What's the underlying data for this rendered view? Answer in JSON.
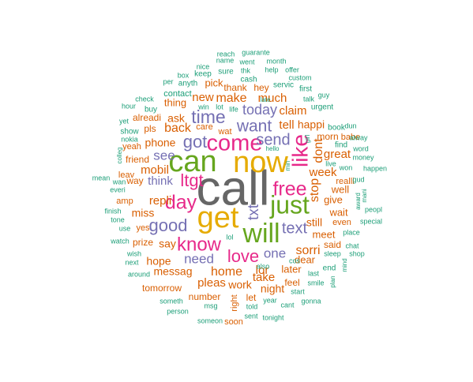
{
  "palette": {
    "teal": "#1b9e77",
    "orange": "#d95f02",
    "purple": "#7570b3",
    "magenta": "#e7298a",
    "green": "#66a61e",
    "gold": "#e6ab02",
    "gray": "#666666"
  },
  "words": [
    {
      "id": "call",
      "text": "call",
      "color": "gray"
    },
    {
      "id": "get",
      "text": "get",
      "color": "gold"
    },
    {
      "id": "can",
      "text": "can",
      "color": "green"
    },
    {
      "id": "now",
      "text": "now",
      "color": "gold"
    },
    {
      "id": "will",
      "text": "will",
      "color": "green"
    },
    {
      "id": "just",
      "text": "just",
      "color": "green"
    },
    {
      "id": "come",
      "text": "come",
      "color": "magenta"
    },
    {
      "id": "free",
      "text": "free",
      "color": "magenta"
    },
    {
      "id": "like",
      "text": "like",
      "color": "magenta"
    },
    {
      "id": "know",
      "text": "know",
      "color": "magenta"
    },
    {
      "id": "day",
      "text": "day",
      "color": "magenta"
    },
    {
      "id": "love",
      "text": "love",
      "color": "magenta"
    },
    {
      "id": "time",
      "text": "time",
      "color": "purple"
    },
    {
      "id": "want",
      "text": "want",
      "color": "purple"
    },
    {
      "id": "good",
      "text": "good",
      "color": "purple"
    },
    {
      "id": "got",
      "text": "got",
      "color": "purple"
    },
    {
      "id": "ltgt",
      "text": "ltgt",
      "color": "magenta"
    },
    {
      "id": "send",
      "text": "send",
      "color": "purple"
    },
    {
      "id": "text",
      "text": "text",
      "color": "purple"
    },
    {
      "id": "txt",
      "text": "txt",
      "color": "purple"
    },
    {
      "id": "one",
      "text": "one",
      "color": "purple"
    },
    {
      "id": "need",
      "text": "need",
      "color": "purple"
    },
    {
      "id": "today",
      "text": "today",
      "color": "purple"
    },
    {
      "id": "see",
      "text": "see",
      "color": "purple"
    },
    {
      "id": "think",
      "text": "think",
      "color": "purple"
    },
    {
      "id": "dont",
      "text": "dont",
      "color": "orange"
    },
    {
      "id": "stop",
      "text": "stop",
      "color": "orange"
    },
    {
      "id": "sorri",
      "text": "sorri",
      "color": "orange"
    },
    {
      "id": "make",
      "text": "make",
      "color": "orange"
    },
    {
      "id": "new",
      "text": "new",
      "color": "orange"
    },
    {
      "id": "much",
      "text": "much",
      "color": "orange"
    },
    {
      "id": "claim",
      "text": "claim",
      "color": "orange"
    },
    {
      "id": "tell",
      "text": "tell",
      "color": "orange"
    },
    {
      "id": "happi",
      "text": "happi",
      "color": "orange"
    },
    {
      "id": "back",
      "text": "back",
      "color": "orange"
    },
    {
      "id": "ask",
      "text": "ask",
      "color": "orange"
    },
    {
      "id": "phone",
      "text": "phone",
      "color": "orange"
    },
    {
      "id": "mobil",
      "text": "mobil",
      "color": "orange"
    },
    {
      "id": "repli",
      "text": "repli",
      "color": "orange"
    },
    {
      "id": "miss",
      "text": "miss",
      "color": "orange"
    },
    {
      "id": "say",
      "text": "say",
      "color": "orange"
    },
    {
      "id": "hope",
      "text": "hope",
      "color": "orange"
    },
    {
      "id": "messag",
      "text": "messag",
      "color": "orange"
    },
    {
      "id": "home",
      "text": "home",
      "color": "orange"
    },
    {
      "id": "lor",
      "text": "lor",
      "color": "orange"
    },
    {
      "id": "take",
      "text": "take",
      "color": "orange"
    },
    {
      "id": "pleas",
      "text": "pleas",
      "color": "orange"
    },
    {
      "id": "work",
      "text": "work",
      "color": "orange"
    },
    {
      "id": "night",
      "text": "night",
      "color": "orange"
    },
    {
      "id": "week",
      "text": "week",
      "color": "orange"
    },
    {
      "id": "great",
      "text": "great",
      "color": "orange"
    },
    {
      "id": "still",
      "text": "still",
      "color": "orange"
    },
    {
      "id": "well",
      "text": "well",
      "color": "orange"
    },
    {
      "id": "give",
      "text": "give",
      "color": "orange"
    },
    {
      "id": "wait",
      "text": "wait",
      "color": "orange"
    },
    {
      "id": "meet",
      "text": "meet",
      "color": "orange"
    },
    {
      "id": "later",
      "text": "later",
      "color": "orange"
    },
    {
      "id": "dear",
      "text": "dear",
      "color": "orange"
    },
    {
      "id": "thing",
      "text": "thing",
      "color": "orange"
    },
    {
      "id": "pick",
      "text": "pick",
      "color": "orange"
    },
    {
      "id": "alreadi",
      "text": "alreadi",
      "color": "orange"
    },
    {
      "id": "friend",
      "text": "friend",
      "color": "orange"
    },
    {
      "id": "way",
      "text": "way",
      "color": "orange"
    },
    {
      "id": "pls",
      "text": "pls",
      "color": "orange"
    },
    {
      "id": "yeah",
      "text": "yeah",
      "color": "orange"
    },
    {
      "id": "number",
      "text": "number",
      "color": "orange"
    },
    {
      "id": "tomorrow",
      "text": "tomorrow",
      "color": "orange"
    },
    {
      "id": "prize",
      "text": "prize",
      "color": "orange"
    },
    {
      "id": "yes",
      "text": "yes",
      "color": "orange"
    },
    {
      "id": "amp",
      "text": "amp",
      "color": "orange"
    },
    {
      "id": "leav",
      "text": "leav",
      "color": "orange"
    },
    {
      "id": "thank",
      "text": "thank",
      "color": "orange"
    },
    {
      "id": "hey",
      "text": "hey",
      "color": "orange"
    },
    {
      "id": "care",
      "text": "care",
      "color": "orange"
    },
    {
      "id": "wat",
      "text": "wat",
      "color": "orange"
    },
    {
      "id": "let",
      "text": "let",
      "color": "orange"
    },
    {
      "id": "feel",
      "text": "feel",
      "color": "orange"
    },
    {
      "id": "said",
      "text": "said",
      "color": "orange"
    },
    {
      "id": "realli",
      "text": "realli",
      "color": "orange"
    },
    {
      "id": "morn",
      "text": "morn",
      "color": "orange"
    },
    {
      "id": "soon",
      "text": "soon",
      "color": "orange"
    },
    {
      "id": "right",
      "text": "right",
      "color": "orange"
    },
    {
      "id": "babe",
      "text": "babe",
      "color": "orange"
    },
    {
      "id": "even",
      "text": "even",
      "color": "orange"
    },
    {
      "id": "guarante",
      "text": "guarante",
      "color": "teal"
    },
    {
      "id": "reach",
      "text": "reach",
      "color": "teal"
    },
    {
      "id": "name",
      "text": "name",
      "color": "teal"
    },
    {
      "id": "went",
      "text": "went",
      "color": "teal"
    },
    {
      "id": "month",
      "text": "month",
      "color": "teal"
    },
    {
      "id": "nice",
      "text": "nice",
      "color": "teal"
    },
    {
      "id": "thk",
      "text": "thk",
      "color": "teal"
    },
    {
      "id": "help",
      "text": "help",
      "color": "teal"
    },
    {
      "id": "offer",
      "text": "offer",
      "color": "teal"
    },
    {
      "id": "box",
      "text": "box",
      "color": "teal"
    },
    {
      "id": "keep",
      "text": "keep",
      "color": "teal"
    },
    {
      "id": "sure",
      "text": "sure",
      "color": "teal"
    },
    {
      "id": "custom",
      "text": "custom",
      "color": "teal"
    },
    {
      "id": "per",
      "text": "per",
      "color": "teal"
    },
    {
      "id": "anyth",
      "text": "anyth",
      "color": "teal"
    },
    {
      "id": "cash",
      "text": "cash",
      "color": "teal"
    },
    {
      "id": "servic",
      "text": "servic",
      "color": "teal"
    },
    {
      "id": "first",
      "text": "first",
      "color": "teal"
    },
    {
      "id": "check",
      "text": "check",
      "color": "teal"
    },
    {
      "id": "contact",
      "text": "contact",
      "color": "teal"
    },
    {
      "id": "late",
      "text": "late",
      "color": "teal"
    },
    {
      "id": "talk",
      "text": "talk",
      "color": "teal"
    },
    {
      "id": "guy",
      "text": "guy",
      "color": "teal"
    },
    {
      "id": "hour",
      "text": "hour",
      "color": "teal"
    },
    {
      "id": "buy",
      "text": "buy",
      "color": "teal"
    },
    {
      "id": "win",
      "text": "win",
      "color": "teal"
    },
    {
      "id": "lot",
      "text": "lot",
      "color": "teal"
    },
    {
      "id": "life",
      "text": "life",
      "color": "teal"
    },
    {
      "id": "urgent",
      "text": "urgent",
      "color": "teal"
    },
    {
      "id": "yet",
      "text": "yet",
      "color": "teal"
    },
    {
      "id": "book",
      "text": "book",
      "color": "teal"
    },
    {
      "id": "dun",
      "text": "dun",
      "color": "teal"
    },
    {
      "id": "show",
      "text": "show",
      "color": "teal"
    },
    {
      "id": "alway",
      "text": "alway",
      "color": "teal"
    },
    {
      "id": "find",
      "text": "find",
      "color": "teal"
    },
    {
      "id": "word",
      "text": "word",
      "color": "teal"
    },
    {
      "id": "colleg",
      "text": "colleg",
      "color": "teal"
    },
    {
      "id": "hello",
      "text": "hello",
      "color": "teal"
    },
    {
      "id": "money",
      "text": "money",
      "color": "teal"
    },
    {
      "id": "girl",
      "text": "girl",
      "color": "teal"
    },
    {
      "id": "live",
      "text": "live",
      "color": "teal"
    },
    {
      "id": "happen",
      "text": "happen",
      "color": "teal"
    },
    {
      "id": "mean",
      "text": "mean",
      "color": "teal"
    },
    {
      "id": "wan",
      "text": "wan",
      "color": "teal"
    },
    {
      "id": "min",
      "text": "min",
      "color": "teal"
    },
    {
      "id": "won",
      "text": "won",
      "color": "teal"
    },
    {
      "id": "gud",
      "text": "gud",
      "color": "teal"
    },
    {
      "id": "everi",
      "text": "everi",
      "color": "teal"
    },
    {
      "id": "award",
      "text": "award",
      "color": "teal"
    },
    {
      "id": "mani",
      "text": "mani",
      "color": "teal"
    },
    {
      "id": "finish",
      "text": "finish",
      "color": "teal"
    },
    {
      "id": "peopl",
      "text": "peopl",
      "color": "teal"
    },
    {
      "id": "tone",
      "text": "tone",
      "color": "teal"
    },
    {
      "id": "special",
      "text": "special",
      "color": "teal"
    },
    {
      "id": "use",
      "text": "use",
      "color": "teal"
    },
    {
      "id": "place",
      "text": "place",
      "color": "teal"
    },
    {
      "id": "watch",
      "text": "watch",
      "color": "teal"
    },
    {
      "id": "lol",
      "text": "lol",
      "color": "teal"
    },
    {
      "id": "chat",
      "text": "chat",
      "color": "teal"
    },
    {
      "id": "wish",
      "text": "wish",
      "color": "teal"
    },
    {
      "id": "sleep",
      "text": "sleep",
      "color": "teal"
    },
    {
      "id": "shop",
      "text": "shop",
      "color": "teal"
    },
    {
      "id": "next",
      "text": "next",
      "color": "teal"
    },
    {
      "id": "also",
      "text": "also",
      "color": "teal"
    },
    {
      "id": "end",
      "text": "end",
      "color": "teal"
    },
    {
      "id": "mind",
      "text": "mind",
      "color": "teal"
    },
    {
      "id": "around",
      "text": "around",
      "color": "teal"
    },
    {
      "id": "last",
      "text": "last",
      "color": "teal"
    },
    {
      "id": "plan",
      "text": "plan",
      "color": "teal"
    },
    {
      "id": "smile",
      "text": "smile",
      "color": "teal"
    },
    {
      "id": "cos",
      "text": "cos",
      "color": "teal"
    },
    {
      "id": "start",
      "text": "start",
      "color": "teal"
    },
    {
      "id": "someth",
      "text": "someth",
      "color": "teal"
    },
    {
      "id": "msg",
      "text": "msg",
      "color": "teal"
    },
    {
      "id": "year",
      "text": "year",
      "color": "teal"
    },
    {
      "id": "gonna",
      "text": "gonna",
      "color": "teal"
    },
    {
      "id": "told",
      "text": "told",
      "color": "teal"
    },
    {
      "id": "cant",
      "text": "cant",
      "color": "teal"
    },
    {
      "id": "person",
      "text": "person",
      "color": "teal"
    },
    {
      "id": "sent",
      "text": "sent",
      "color": "teal"
    },
    {
      "id": "tonight",
      "text": "tonight",
      "color": "teal"
    },
    {
      "id": "someon",
      "text": "someon",
      "color": "teal"
    },
    {
      "id": "nokia",
      "text": "nokia",
      "color": "teal"
    }
  ]
}
